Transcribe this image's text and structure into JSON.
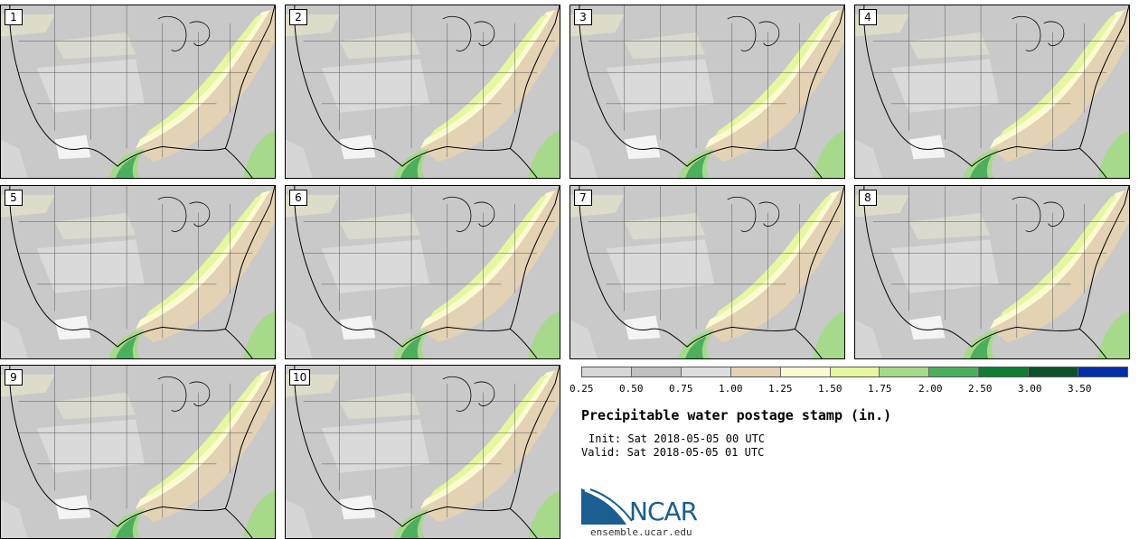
{
  "panels": [
    {
      "label": "1"
    },
    {
      "label": "2"
    },
    {
      "label": "3"
    },
    {
      "label": "4"
    },
    {
      "label": "5"
    },
    {
      "label": "6"
    },
    {
      "label": "7"
    },
    {
      "label": "8"
    },
    {
      "label": "9"
    },
    {
      "label": "10"
    }
  ],
  "colorbar": {
    "colors": [
      "#d6d6d6",
      "#c0c0c0",
      "#dedede",
      "#e3d2b4",
      "#fbfbd2",
      "#e6f7a0",
      "#a6d98a",
      "#4caf5e",
      "#0f7d33",
      "#0b5228",
      "#002ea8"
    ],
    "ticks": [
      "0.25",
      "0.50",
      "0.75",
      "1.00",
      "1.25",
      "1.50",
      "1.75",
      "2.00",
      "2.50",
      "3.00",
      "3.50"
    ]
  },
  "title": "Precipitable water postage stamp (in.)",
  "init": "Init: Sat 2018-05-05 00 UTC",
  "valid": "Valid: Sat 2018-05-05 01 UTC",
  "logo": {
    "text": "NCAR",
    "website": "ensemble.ucar.edu",
    "color": "#1a5e92"
  }
}
